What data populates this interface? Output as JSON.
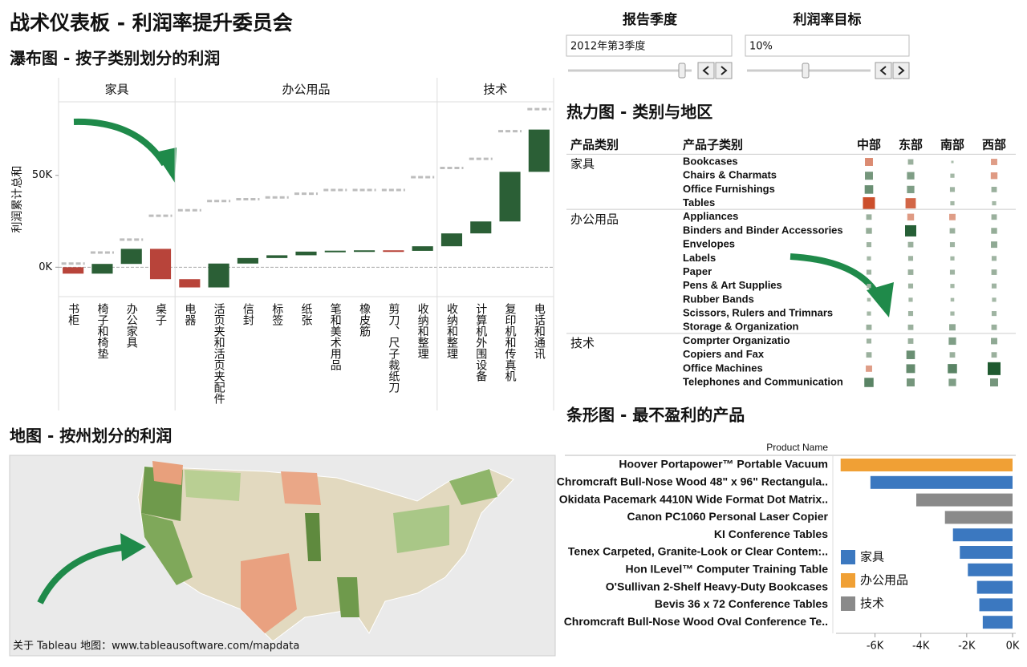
{
  "title": "战术仪表板 - 利润率提升委员会",
  "filters": [
    {
      "label": "报告季度",
      "value": "2012年第3季度"
    },
    {
      "label": "利润率目标",
      "value": "10%"
    }
  ],
  "map": {
    "title": "地图 - 按州划分的利润",
    "caption": "关于 Tableau 地图：www.tableausoftware.com/mapdata"
  },
  "chart_data": [
    {
      "type": "waterfall",
      "title": "瀑布图 - 按子类别划分的利润",
      "ylabel": "利润累计总和",
      "ylim": [
        -16000,
        90000
      ],
      "yticks": [
        {
          "value": 0,
          "label": "0K"
        },
        {
          "value": 50000,
          "label": "50K"
        }
      ],
      "zero_line": true,
      "positive_color": "#2b5f36",
      "negative_color": "#b8443a",
      "marker_color": "#bdbdbd",
      "groups": [
        {
          "name": "家具",
          "categories": [
            "书柜",
            "椅子和椅垫",
            "办公家具",
            "桌子"
          ],
          "values": [
            -3500,
            5300,
            8200,
            -16500
          ],
          "markers": [
            2000,
            8000,
            15000,
            28000
          ]
        },
        {
          "name": "办公用品",
          "categories": [
            "电器",
            "活页夹和活页夹配件",
            "信封",
            "标签",
            "纸张",
            "笔和美术用品",
            "橡皮筋",
            "剪刀、尺子裁纸刀",
            "收纳和整理"
          ],
          "values": [
            -4500,
            13000,
            3000,
            1500,
            2000,
            500,
            200,
            -300,
            2500
          ],
          "markers": [
            31000,
            36000,
            37000,
            38000,
            40000,
            42000,
            42000,
            42000,
            49000
          ]
        },
        {
          "name": "技术",
          "categories": [
            "收纳和整理",
            "计算机外围设备",
            "复印机和传真机",
            "电话和通讯"
          ],
          "values": [
            7000,
            6500,
            27000,
            23000
          ],
          "markers": [
            54000,
            59000,
            74000,
            86000
          ]
        }
      ]
    },
    {
      "type": "heatmap",
      "title": "热力图 - 类别与地区",
      "column_headers": [
        "产品类别",
        "产品子类别"
      ],
      "columns": [
        "中部",
        "东部",
        "南部",
        "西部"
      ],
      "positive_color": "#1f5a30",
      "negative_color": "#cc4f2c",
      "groups": [
        {
          "name": "家具",
          "rows": [
            {
              "label": "Bookcases",
              "values": [
                -1,
                0.3,
                0,
                -0.5
              ]
            },
            {
              "label": "Chairs & Charmats",
              "values": [
                1,
                0.8,
                0.1,
                -0.6
              ]
            },
            {
              "label": "Office Furnishings",
              "values": [
                1.2,
                0.8,
                0.2,
                0.3
              ]
            },
            {
              "label": "Tables",
              "values": [
                -3,
                -2,
                0.1,
                0.1
              ]
            }
          ]
        },
        {
          "name": "办公用品",
          "rows": [
            {
              "label": "Appliances",
              "values": [
                0.3,
                -0.6,
                -0.5,
                0.3
              ]
            },
            {
              "label": "Binders and Binder Accessories",
              "values": [
                0.4,
                2.5,
                0.3,
                0.4
              ]
            },
            {
              "label": "Envelopes",
              "values": [
                0.2,
                0.3,
                0.2,
                0.5
              ]
            },
            {
              "label": "Labels",
              "values": [
                0.1,
                0.2,
                0.1,
                0.2
              ]
            },
            {
              "label": "Paper",
              "values": [
                0.2,
                0.3,
                0.2,
                0.3
              ]
            },
            {
              "label": "Pens & Art Supplies",
              "values": [
                0.1,
                0.2,
                0.1,
                0.2
              ]
            },
            {
              "label": "Rubber Bands",
              "values": [
                0.05,
                0.1,
                0.05,
                0.1
              ]
            },
            {
              "label": "Scissors, Rulers and Trimnars",
              "values": [
                0.1,
                0.2,
                0.1,
                0.2
              ]
            },
            {
              "label": "Storage & Organization",
              "values": [
                0.3,
                0.3,
                0.5,
                0.3
              ]
            }
          ]
        },
        {
          "name": "技术",
          "rows": [
            {
              "label": "Comprter Organizatio",
              "values": [
                0.2,
                0.3,
                0.8,
                0.5
              ]
            },
            {
              "label": "Copiers and Fax",
              "values": [
                0.3,
                1.2,
                0.3,
                0.3
              ]
            },
            {
              "label": "Office Machines",
              "values": [
                -0.5,
                1.3,
                1.5,
                3.5
              ]
            },
            {
              "label": "Telephones and Communication",
              "values": [
                1.5,
                1,
                0.8,
                1
              ]
            }
          ]
        }
      ]
    },
    {
      "type": "bar",
      "orientation": "horizontal",
      "title": "条形图 - 最不盈利的产品",
      "axis_label": "Product Name",
      "categories": [
        "Hoover Portapower™ Portable Vacuum",
        "Chromcraft Bull-Nose Wood 48\" x 96\" Rectangula..",
        "Okidata Pacemark 4410N Wide Format Dot Matrix..",
        "Canon PC1060 Personal Laser Copier",
        "KI Conference Tables",
        "Tenex Carpeted, Granite-Look or Clear Contem:..",
        "Hon ILevel™ Computer Training Table",
        "O'Sullivan 2-Shelf Heavy-Duty Bookcases",
        "Bevis 36 x 72 Conference Tables",
        "Chromcraft Bull-Nose Wood Oval Conference Te.."
      ],
      "series": [
        {
          "name": "家具",
          "color": "#3b78c0",
          "values": [
            null,
            -6200,
            null,
            null,
            -2600,
            -2300,
            -1950,
            -1550,
            -1450,
            -1300
          ]
        },
        {
          "name": "办公用品",
          "color": "#f0a035",
          "values": [
            -7500,
            null,
            null,
            null,
            null,
            null,
            null,
            null,
            null,
            null
          ]
        },
        {
          "name": "技术",
          "color": "#8a8a8a",
          "values": [
            null,
            null,
            -4200,
            -2950,
            null,
            null,
            null,
            null,
            null,
            null
          ]
        }
      ],
      "xlim": [
        -7700,
        0
      ],
      "xticks": [
        {
          "value": -6000,
          "label": "-6K"
        },
        {
          "value": -4000,
          "label": "-4K"
        },
        {
          "value": -2000,
          "label": "-2K"
        },
        {
          "value": 0,
          "label": "0K"
        }
      ],
      "legend": "left"
    }
  ]
}
